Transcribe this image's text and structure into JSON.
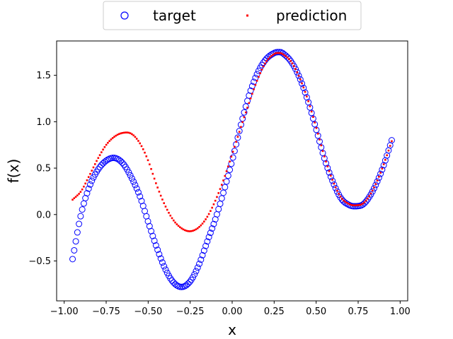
{
  "chart_data": {
    "type": "scatter",
    "title": "",
    "xlabel": "x",
    "ylabel": "f(x)",
    "xlim": [
      -1.045,
      1.045
    ],
    "ylim": [
      -0.93,
      1.87
    ],
    "x_ticks": [
      -1.0,
      -0.75,
      -0.5,
      -0.25,
      0.0,
      0.25,
      0.5,
      0.75,
      1.0
    ],
    "x_tick_labels": [
      "−1.00",
      "−0.75",
      "−0.50",
      "−0.25",
      "0.00",
      "0.25",
      "0.50",
      "0.75",
      "1.00"
    ],
    "y_ticks": [
      -0.5,
      0.0,
      0.5,
      1.0,
      1.5
    ],
    "y_tick_labels": [
      "−0.5",
      "0.0",
      "0.5",
      "1.0",
      "1.5"
    ],
    "grid": false,
    "legend": {
      "position": "top-center-outside",
      "columns": 2
    },
    "x_range": [
      -0.95,
      0.95
    ],
    "num_points": 200,
    "series": [
      {
        "name": "target",
        "marker": "open-circle",
        "color": "#0000ff",
        "keypoints": [
          [
            -0.95,
            -0.48
          ],
          [
            -0.9,
            0.0
          ],
          [
            -0.85,
            0.3
          ],
          [
            -0.8,
            0.48
          ],
          [
            -0.75,
            0.58
          ],
          [
            -0.7,
            0.61
          ],
          [
            -0.65,
            0.55
          ],
          [
            -0.6,
            0.4
          ],
          [
            -0.55,
            0.2
          ],
          [
            -0.5,
            -0.08
          ],
          [
            -0.45,
            -0.35
          ],
          [
            -0.4,
            -0.58
          ],
          [
            -0.35,
            -0.73
          ],
          [
            -0.3,
            -0.78
          ],
          [
            -0.25,
            -0.72
          ],
          [
            -0.2,
            -0.55
          ],
          [
            -0.15,
            -0.3
          ],
          [
            -0.1,
            -0.05
          ],
          [
            -0.05,
            0.25
          ],
          [
            0.0,
            0.58
          ],
          [
            0.05,
            0.95
          ],
          [
            0.1,
            1.28
          ],
          [
            0.15,
            1.52
          ],
          [
            0.2,
            1.67
          ],
          [
            0.25,
            1.74
          ],
          [
            0.28,
            1.75
          ],
          [
            0.3,
            1.74
          ],
          [
            0.35,
            1.65
          ],
          [
            0.4,
            1.48
          ],
          [
            0.45,
            1.23
          ],
          [
            0.5,
            0.92
          ],
          [
            0.55,
            0.6
          ],
          [
            0.6,
            0.35
          ],
          [
            0.65,
            0.17
          ],
          [
            0.7,
            0.1
          ],
          [
            0.74,
            0.09
          ],
          [
            0.78,
            0.11
          ],
          [
            0.82,
            0.2
          ],
          [
            0.86,
            0.34
          ],
          [
            0.9,
            0.52
          ],
          [
            0.95,
            0.8
          ]
        ]
      },
      {
        "name": "prediction",
        "marker": "small-square",
        "color": "#ff0000",
        "keypoints": [
          [
            -0.95,
            0.16
          ],
          [
            -0.9,
            0.25
          ],
          [
            -0.85,
            0.42
          ],
          [
            -0.8,
            0.6
          ],
          [
            -0.75,
            0.75
          ],
          [
            -0.7,
            0.84
          ],
          [
            -0.65,
            0.88
          ],
          [
            -0.6,
            0.87
          ],
          [
            -0.55,
            0.77
          ],
          [
            -0.5,
            0.58
          ],
          [
            -0.45,
            0.32
          ],
          [
            -0.4,
            0.1
          ],
          [
            -0.35,
            -0.06
          ],
          [
            -0.3,
            -0.15
          ],
          [
            -0.25,
            -0.18
          ],
          [
            -0.2,
            -0.14
          ],
          [
            -0.15,
            -0.03
          ],
          [
            -0.1,
            0.15
          ],
          [
            -0.05,
            0.38
          ],
          [
            0.0,
            0.65
          ],
          [
            0.05,
            0.93
          ],
          [
            0.1,
            1.2
          ],
          [
            0.15,
            1.45
          ],
          [
            0.2,
            1.64
          ],
          [
            0.25,
            1.73
          ],
          [
            0.28,
            1.74
          ],
          [
            0.3,
            1.73
          ],
          [
            0.35,
            1.65
          ],
          [
            0.4,
            1.48
          ],
          [
            0.45,
            1.24
          ],
          [
            0.5,
            0.94
          ],
          [
            0.55,
            0.62
          ],
          [
            0.6,
            0.36
          ],
          [
            0.65,
            0.18
          ],
          [
            0.7,
            0.11
          ],
          [
            0.74,
            0.1
          ],
          [
            0.78,
            0.12
          ],
          [
            0.82,
            0.21
          ],
          [
            0.86,
            0.35
          ],
          [
            0.9,
            0.53
          ],
          [
            0.95,
            0.79
          ]
        ]
      }
    ]
  }
}
